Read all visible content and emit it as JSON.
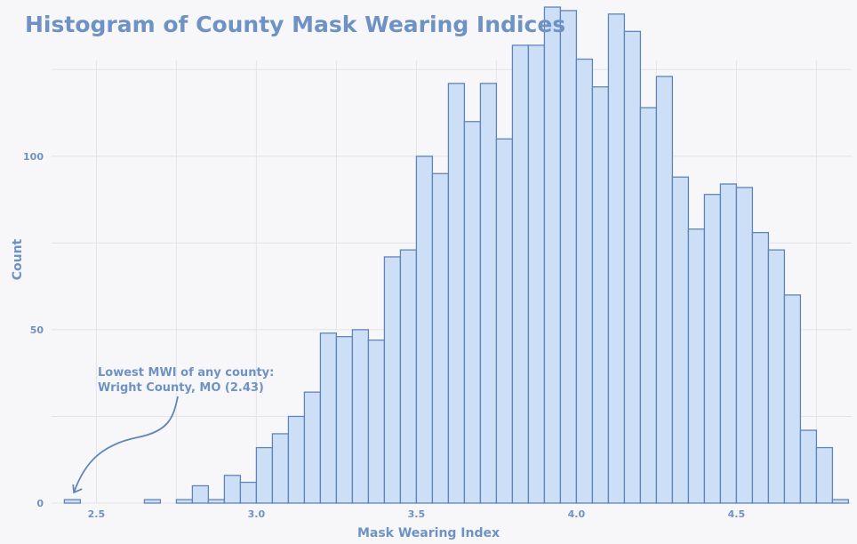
{
  "chart_data": {
    "type": "bar",
    "title": "Histogram of County Mask Wearing Indices",
    "xlabel": "Mask Wearing Index",
    "ylabel": "Count",
    "xlim": [
      2.36,
      4.86
    ],
    "ylim": [
      0,
      143
    ],
    "bin_width": 0.05,
    "first_bin_start": 2.4,
    "x_ticks": [
      2.5,
      3.0,
      3.5,
      4.0,
      4.5
    ],
    "x_tick_labels": [
      "2.5",
      "3.0",
      "3.5",
      "4.0",
      "4.5"
    ],
    "y_ticks": [
      0,
      50,
      100
    ],
    "y_tick_labels": [
      "0",
      "50",
      "100"
    ],
    "values": [
      1,
      0,
      0,
      0,
      0,
      1,
      0,
      1,
      5,
      1,
      8,
      6,
      16,
      20,
      25,
      32,
      49,
      48,
      50,
      47,
      71,
      73,
      100,
      95,
      121,
      110,
      121,
      105,
      132,
      132,
      143,
      142,
      128,
      120,
      141,
      136,
      114,
      123,
      94,
      79,
      89,
      92,
      91,
      78,
      73,
      60,
      21,
      16,
      1
    ],
    "grid": true,
    "annotation": {
      "lines": [
        "Lowest MWI of any county:",
        "Wright County, MO (2.43)"
      ],
      "x": 2.43,
      "y": 1
    }
  }
}
